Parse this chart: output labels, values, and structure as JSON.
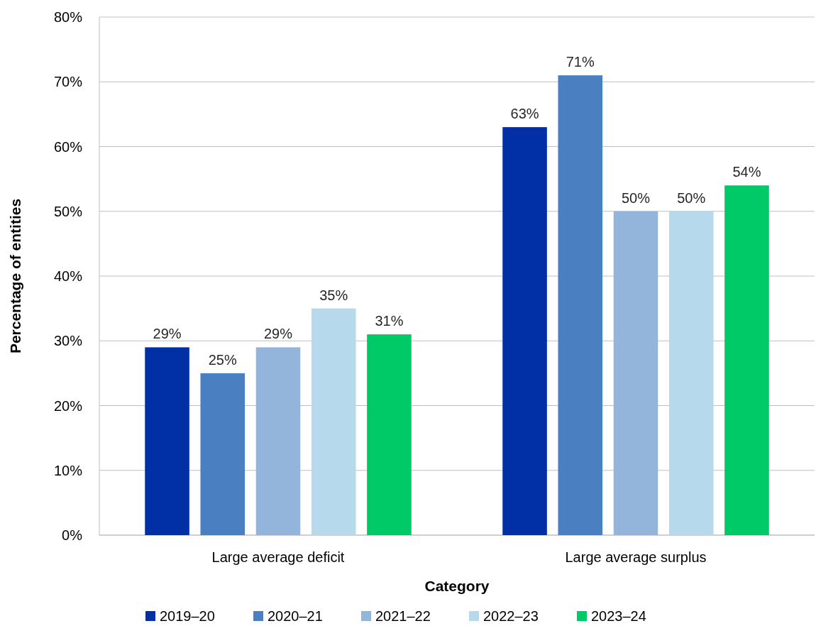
{
  "chart_data": {
    "type": "bar",
    "xlabel": "Category",
    "ylabel": "Percentage of entities",
    "categories": [
      "Large average deficit",
      "Large average surplus"
    ],
    "series": [
      {
        "name": "2019–20",
        "color": "#002fa6",
        "values": [
          29,
          63
        ],
        "value_labels": [
          "29%",
          "63%"
        ]
      },
      {
        "name": "2020–21",
        "color": "#4a80c2",
        "values": [
          25,
          71
        ],
        "value_labels": [
          "25%",
          "71%"
        ]
      },
      {
        "name": "2021–22",
        "color": "#93b4db",
        "values": [
          29,
          50
        ],
        "value_labels": [
          "29%",
          "50%"
        ]
      },
      {
        "name": "2022–23",
        "color": "#b6d9ec",
        "values": [
          35,
          50
        ],
        "value_labels": [
          "35%",
          "50%"
        ]
      },
      {
        "name": "2023–24",
        "color": "#00c968",
        "values": [
          31,
          54
        ],
        "value_labels": [
          "31%",
          "54%"
        ]
      }
    ],
    "ylim": [
      0,
      80
    ],
    "yticks": [
      {
        "value": 0,
        "label": "0%"
      },
      {
        "value": 10,
        "label": "10%"
      },
      {
        "value": 20,
        "label": "20%"
      },
      {
        "value": 30,
        "label": "30%"
      },
      {
        "value": 40,
        "label": "40%"
      },
      {
        "value": 50,
        "label": "50%"
      },
      {
        "value": 60,
        "label": "60%"
      },
      {
        "value": 70,
        "label": "70%"
      },
      {
        "value": 80,
        "label": "80%"
      }
    ],
    "grid": "y",
    "legend": "bottom"
  }
}
